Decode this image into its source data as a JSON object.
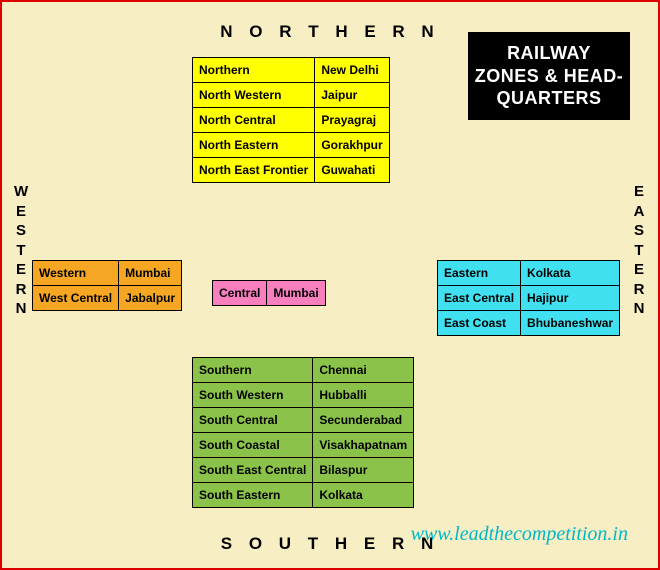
{
  "title": "RAILWAY ZONES & HEAD-QUARTERS",
  "edges": {
    "top": "N O R T H E R N",
    "bottom": "S O U T H E R N",
    "left": "WESTERN",
    "right": "EASTERN"
  },
  "tables": {
    "north": {
      "color": "#ffff00",
      "rows": [
        [
          "Northern",
          "New Delhi"
        ],
        [
          "North Western",
          "Jaipur"
        ],
        [
          "North Central",
          "Prayagraj"
        ],
        [
          "North Eastern",
          "Gorakhpur"
        ],
        [
          "North East Frontier",
          "Guwahati"
        ]
      ]
    },
    "west": {
      "color": "#f5a623",
      "rows": [
        [
          "Western",
          "Mumbai"
        ],
        [
          "West Central",
          "Jabalpur"
        ]
      ]
    },
    "central": {
      "color": "#f77fbe",
      "rows": [
        [
          "Central",
          "Mumbai"
        ]
      ]
    },
    "east": {
      "color": "#40e0f0",
      "rows": [
        [
          "Eastern",
          "Kolkata"
        ],
        [
          "East Central",
          "Hajipur"
        ],
        [
          "East Coast",
          "Bhubaneshwar"
        ]
      ]
    },
    "south": {
      "color": "#8bc34a",
      "rows": [
        [
          "Southern",
          "Chennai"
        ],
        [
          "South Western",
          "Hubballi"
        ],
        [
          "South Central",
          "Secunderabad"
        ],
        [
          "South Coastal",
          "Visakhapatnam"
        ],
        [
          "South East Central",
          "Bilaspur"
        ],
        [
          "South Eastern",
          "Kolkata"
        ]
      ]
    }
  },
  "credit": "www.leadthecompetition.in",
  "styling": {
    "background": "#f7eec4",
    "border_color": "#d00",
    "cell_border": "#000000",
    "font_size_table": 12,
    "font_size_edge": 17,
    "title_bg": "#000000",
    "title_fg": "#ffffff",
    "credit_color": "#00b8c8"
  }
}
